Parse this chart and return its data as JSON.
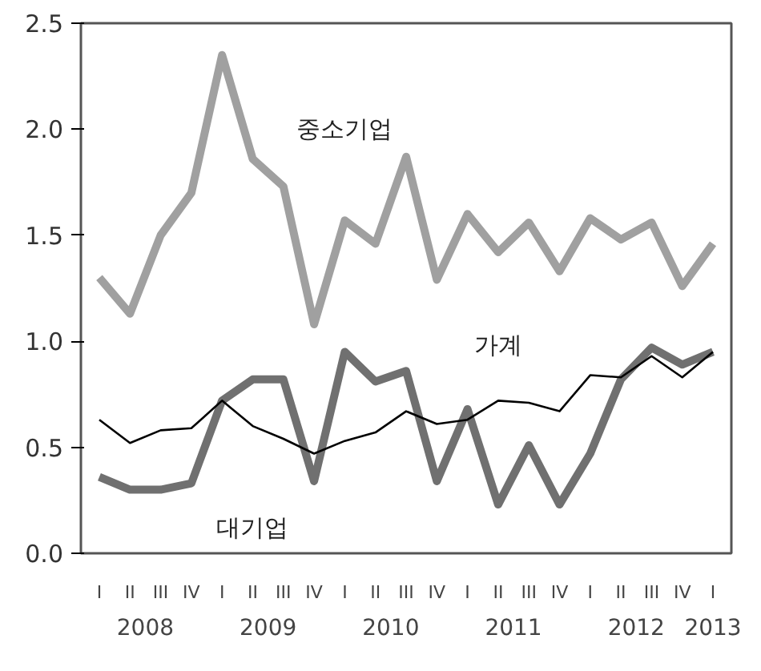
{
  "chart_data": {
    "type": "line",
    "categories": [
      "I",
      "II",
      "III",
      "IV",
      "I",
      "II",
      "III",
      "IV",
      "I",
      "II",
      "III",
      "IV",
      "I",
      "II",
      "III",
      "IV",
      "I",
      "II",
      "III",
      "IV",
      "I"
    ],
    "series": [
      {
        "name": "중소기업",
        "color": "#a0a0a0",
        "values": [
          1.3,
          1.13,
          1.5,
          1.7,
          2.35,
          1.86,
          1.73,
          1.08,
          1.57,
          1.46,
          1.87,
          1.29,
          1.6,
          1.42,
          1.56,
          1.33,
          1.58,
          1.48,
          1.56,
          1.26,
          1.46
        ]
      },
      {
        "name": "대기업",
        "color": "#707070",
        "values": [
          0.36,
          0.3,
          0.3,
          0.33,
          0.72,
          0.82,
          0.82,
          0.34,
          0.95,
          0.81,
          0.86,
          0.34,
          0.68,
          0.23,
          0.51,
          0.23,
          0.47,
          0.82,
          0.97,
          0.89,
          0.95
        ]
      },
      {
        "name": "가계",
        "color": "#000000",
        "values": [
          0.63,
          0.52,
          0.58,
          0.59,
          0.72,
          0.6,
          0.54,
          0.47,
          0.53,
          0.57,
          0.67,
          0.61,
          0.63,
          0.72,
          0.71,
          0.67,
          0.84,
          0.83,
          0.93,
          0.83,
          0.95
        ]
      }
    ],
    "ylim": [
      0,
      2.5
    ],
    "yticks": [
      {
        "value": 0,
        "label": "0.0"
      },
      {
        "value": 0.5,
        "label": "0.5"
      },
      {
        "value": 1,
        "label": "1.0"
      },
      {
        "value": 1.5,
        "label": "1.5"
      },
      {
        "value": 2,
        "label": "2.0"
      },
      {
        "value": 2.5,
        "label": "2.5"
      }
    ],
    "annotations": [
      "2008",
      "2009",
      "2010",
      "2011",
      "2012",
      "2013"
    ],
    "grid": false,
    "marker": "none",
    "line_style": "solid"
  }
}
